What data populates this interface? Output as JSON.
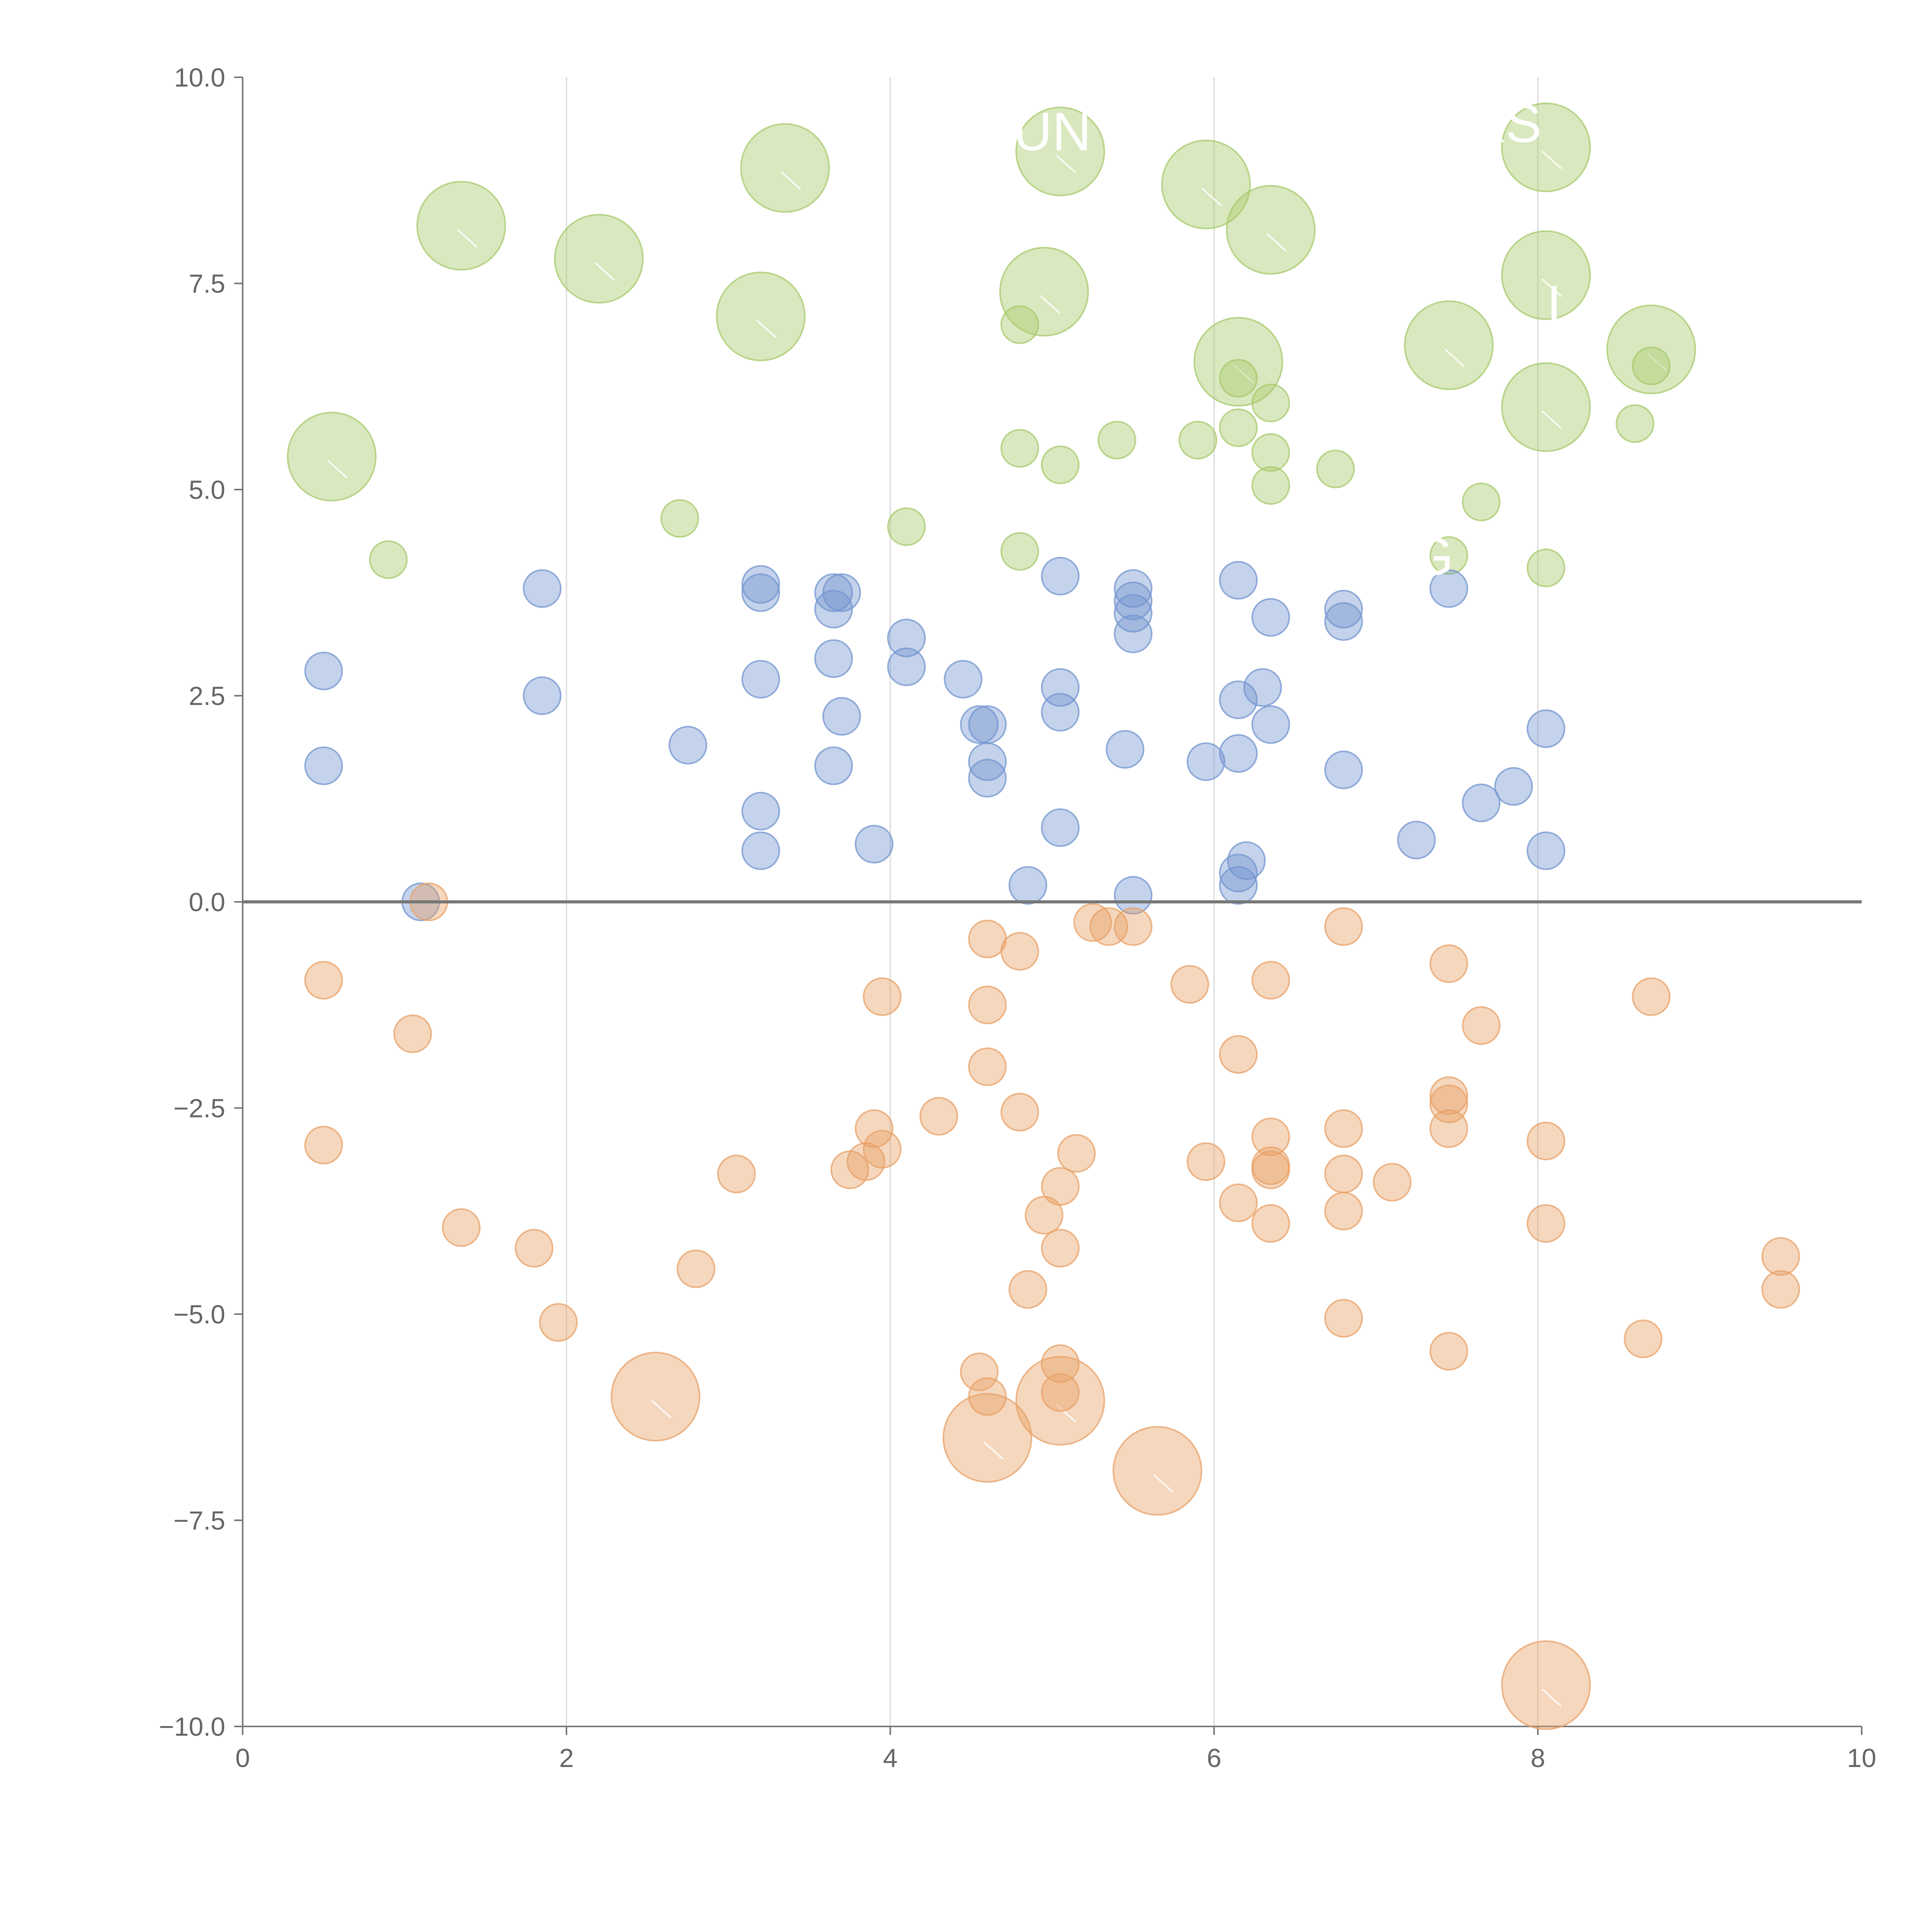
{
  "chart_data": {
    "type": "scatter",
    "title": "",
    "xlabel": "",
    "ylabel": "",
    "xlim": [
      0,
      10
    ],
    "ylim": [
      -10,
      10
    ],
    "x_ticks": [
      "0",
      "2",
      "4",
      "6",
      "8",
      "10"
    ],
    "y_ticks": [
      "10.0",
      "7.5",
      "5.0",
      "2.5",
      "0.0",
      "−2.5",
      "−5.0",
      "−7.5",
      "−10.0"
    ],
    "x_tick_values": [
      0,
      2,
      4,
      6,
      8,
      10
    ],
    "y_tick_values": [
      10,
      7.5,
      5,
      2.5,
      0,
      -2.5,
      -5,
      -7.5,
      -10
    ],
    "reference_line_y": 0,
    "grid": "vertical",
    "series": [
      {
        "name": "green",
        "color": "#a6c96a",
        "points": [
          [
            0.55,
            5.4,
            3
          ],
          [
            1.35,
            8.2,
            3
          ],
          [
            2.2,
            7.8,
            3
          ],
          [
            3.2,
            7.1,
            3
          ],
          [
            3.35,
            8.9,
            3
          ],
          [
            5.05,
            9.1,
            3
          ],
          [
            4.95,
            7.4,
            3
          ],
          [
            5.95,
            8.7,
            3
          ],
          [
            6.35,
            8.15,
            3
          ],
          [
            6.15,
            6.55,
            3
          ],
          [
            7.45,
            6.75,
            3
          ],
          [
            8.05,
            9.15,
            3
          ],
          [
            8.05,
            7.6,
            3
          ],
          [
            8.05,
            6.0,
            3
          ],
          [
            8.7,
            6.7,
            3
          ],
          [
            0.9,
            4.15,
            1
          ],
          [
            2.7,
            4.65,
            1
          ],
          [
            4.1,
            4.55,
            1
          ],
          [
            4.8,
            7.0,
            1
          ],
          [
            4.8,
            5.5,
            1
          ],
          [
            4.8,
            4.25,
            1
          ],
          [
            5.05,
            5.3,
            1
          ],
          [
            5.4,
            5.6,
            1
          ],
          [
            5.9,
            5.6,
            1
          ],
          [
            6.15,
            6.35,
            1
          ],
          [
            6.15,
            5.75,
            1
          ],
          [
            6.35,
            6.05,
            1
          ],
          [
            6.35,
            5.45,
            1
          ],
          [
            6.35,
            5.05,
            1
          ],
          [
            6.75,
            5.25,
            1
          ],
          [
            7.45,
            4.2,
            1
          ],
          [
            7.65,
            4.85,
            1
          ],
          [
            8.05,
            4.05,
            1
          ],
          [
            8.6,
            5.8,
            1
          ],
          [
            8.7,
            6.5,
            1
          ]
        ]
      },
      {
        "name": "blue",
        "color": "#7294cf",
        "points": [
          [
            0.5,
            2.8,
            1
          ],
          [
            0.5,
            1.65,
            1
          ],
          [
            1.1,
            0.0,
            1
          ],
          [
            1.85,
            3.8,
            1
          ],
          [
            1.85,
            2.5,
            1
          ],
          [
            2.75,
            1.9,
            1
          ],
          [
            3.2,
            3.85,
            1
          ],
          [
            3.2,
            3.75,
            1
          ],
          [
            3.2,
            2.7,
            1
          ],
          [
            3.2,
            1.1,
            1
          ],
          [
            3.2,
            0.62,
            1
          ],
          [
            3.65,
            2.95,
            1
          ],
          [
            3.65,
            3.75,
            1
          ],
          [
            3.7,
            3.75,
            1
          ],
          [
            3.65,
            3.55,
            1
          ],
          [
            3.7,
            2.25,
            1
          ],
          [
            3.65,
            1.65,
            1
          ],
          [
            3.9,
            0.7,
            1
          ],
          [
            4.1,
            3.2,
            1
          ],
          [
            4.1,
            2.85,
            1
          ],
          [
            4.45,
            2.7,
            1
          ],
          [
            4.55,
            2.15,
            1
          ],
          [
            4.6,
            2.15,
            1
          ],
          [
            4.6,
            1.7,
            1
          ],
          [
            4.6,
            1.5,
            1
          ],
          [
            4.85,
            0.2,
            1
          ],
          [
            5.05,
            3.95,
            1
          ],
          [
            5.05,
            2.6,
            1
          ],
          [
            5.05,
            2.3,
            1
          ],
          [
            5.05,
            0.9,
            1
          ],
          [
            5.45,
            1.85,
            1
          ],
          [
            5.5,
            3.8,
            1
          ],
          [
            5.5,
            3.65,
            1
          ],
          [
            5.5,
            3.5,
            1
          ],
          [
            5.5,
            3.25,
            1
          ],
          [
            5.5,
            0.08,
            1
          ],
          [
            5.95,
            1.7,
            1
          ],
          [
            6.15,
            3.9,
            1
          ],
          [
            6.15,
            2.45,
            1
          ],
          [
            6.15,
            1.8,
            1
          ],
          [
            6.2,
            0.5,
            1
          ],
          [
            6.15,
            0.35,
            1
          ],
          [
            6.15,
            0.2,
            1
          ],
          [
            6.35,
            3.45,
            1
          ],
          [
            6.35,
            2.15,
            1
          ],
          [
            6.3,
            2.6,
            1
          ],
          [
            6.8,
            3.55,
            1
          ],
          [
            6.8,
            3.4,
            1
          ],
          [
            6.8,
            1.6,
            1
          ],
          [
            7.25,
            0.75,
            1
          ],
          [
            7.45,
            3.8,
            1
          ],
          [
            7.65,
            1.2,
            1
          ],
          [
            7.85,
            1.4,
            1
          ],
          [
            8.05,
            2.1,
            1
          ],
          [
            8.05,
            0.62,
            1
          ]
        ]
      },
      {
        "name": "orange",
        "color": "#e8a065",
        "points": [
          [
            2.55,
            -6.0,
            3
          ],
          [
            4.6,
            -6.5,
            3
          ],
          [
            5.05,
            -6.05,
            3
          ],
          [
            5.65,
            -6.9,
            3
          ],
          [
            8.05,
            -9.5,
            3
          ],
          [
            0.5,
            -0.95,
            1
          ],
          [
            0.5,
            -2.95,
            1
          ],
          [
            1.05,
            -1.6,
            1
          ],
          [
            1.15,
            0.0,
            1
          ],
          [
            1.35,
            -3.95,
            1
          ],
          [
            1.8,
            -4.2,
            1
          ],
          [
            1.95,
            -5.1,
            1
          ],
          [
            2.8,
            -4.45,
            1
          ],
          [
            3.05,
            -3.3,
            1
          ],
          [
            3.75,
            -3.25,
            1
          ],
          [
            3.85,
            -3.15,
            1
          ],
          [
            3.9,
            -2.75,
            1
          ],
          [
            3.95,
            -3.0,
            1
          ],
          [
            3.95,
            -1.15,
            1
          ],
          [
            4.3,
            -2.6,
            1
          ],
          [
            4.6,
            -0.45,
            1
          ],
          [
            4.6,
            -1.25,
            1
          ],
          [
            4.6,
            -2.0,
            1
          ],
          [
            4.55,
            -5.7,
            1
          ],
          [
            4.6,
            -6.0,
            1
          ],
          [
            4.8,
            -0.6,
            1
          ],
          [
            4.8,
            -2.55,
            1
          ],
          [
            4.85,
            -4.7,
            1
          ],
          [
            4.95,
            -3.8,
            1
          ],
          [
            5.05,
            -3.45,
            1
          ],
          [
            5.05,
            -4.2,
            1
          ],
          [
            5.05,
            -5.6,
            1
          ],
          [
            5.05,
            -5.95,
            1
          ],
          [
            5.15,
            -3.05,
            1
          ],
          [
            5.25,
            -0.25,
            1
          ],
          [
            5.35,
            -0.3,
            1
          ],
          [
            5.5,
            -0.3,
            1
          ],
          [
            5.85,
            -1.0,
            1
          ],
          [
            5.95,
            -3.15,
            1
          ],
          [
            6.15,
            -1.85,
            1
          ],
          [
            6.15,
            -3.65,
            1
          ],
          [
            6.35,
            -0.95,
            1
          ],
          [
            6.35,
            -2.85,
            1
          ],
          [
            6.35,
            -3.2,
            1
          ],
          [
            6.35,
            -3.25,
            1
          ],
          [
            6.35,
            -3.9,
            1
          ],
          [
            6.8,
            -0.3,
            1
          ],
          [
            6.8,
            -2.75,
            1
          ],
          [
            6.8,
            -3.3,
            1
          ],
          [
            6.8,
            -3.75,
            1
          ],
          [
            6.8,
            -5.05,
            1
          ],
          [
            7.1,
            -3.4,
            1
          ],
          [
            7.45,
            -0.75,
            1
          ],
          [
            7.45,
            -2.35,
            1
          ],
          [
            7.45,
            -2.45,
            1
          ],
          [
            7.45,
            -2.75,
            1
          ],
          [
            7.45,
            -5.45,
            1
          ],
          [
            7.65,
            -1.5,
            1
          ],
          [
            8.05,
            -2.9,
            1
          ],
          [
            8.05,
            -3.9,
            1
          ],
          [
            8.65,
            -5.3,
            1
          ],
          [
            8.7,
            -1.15,
            1
          ],
          [
            9.5,
            -4.3,
            1
          ],
          [
            9.5,
            -4.7,
            1
          ]
        ]
      }
    ],
    "annotations": [
      {
        "text": "UN",
        "x": 5.0,
        "y": 9.35
      },
      {
        "text": "XS",
        "x": 7.8,
        "y": 9.45
      },
      {
        "text": "L",
        "x": 8.15,
        "y": 7.25
      },
      {
        "text": "G",
        "x": 7.35,
        "y": 4.2
      }
    ]
  }
}
